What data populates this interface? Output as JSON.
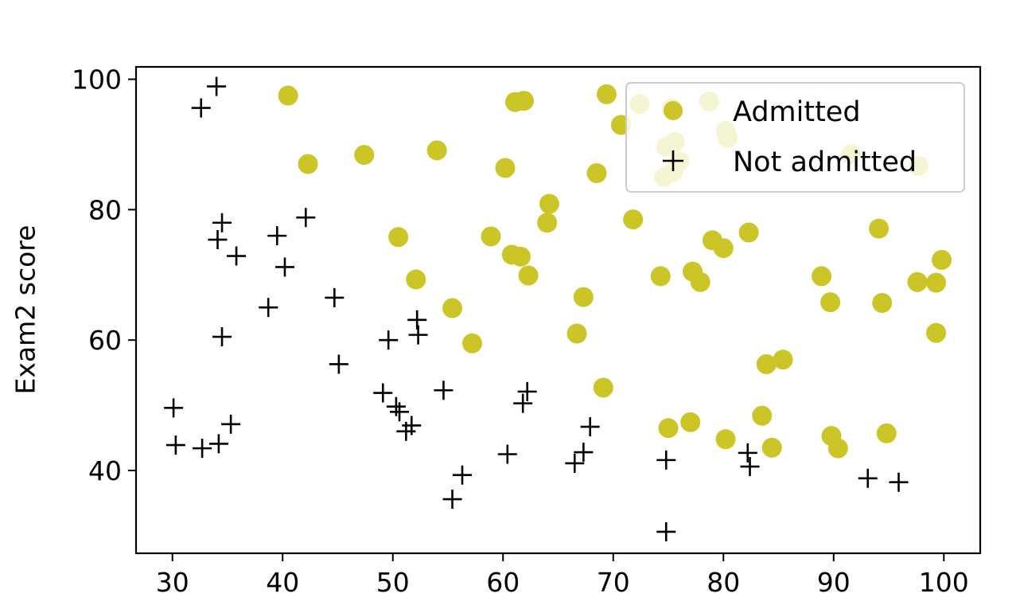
{
  "chart_data": {
    "type": "scatter",
    "title": "",
    "xlabel": "",
    "ylabel": "Exam2 score",
    "xlim": [
      26.7,
      103.3
    ],
    "ylim": [
      27.3,
      101.9
    ],
    "xticks": [
      30,
      40,
      50,
      60,
      70,
      80,
      90,
      100
    ],
    "yticks": [
      40,
      60,
      80,
      100
    ],
    "grid": false,
    "legend": {
      "position": "top-right",
      "entries": [
        "Admitted",
        "Not admitted"
      ]
    },
    "colors": {
      "admitted": "#cbc527",
      "not_admitted": "#000000"
    },
    "series": [
      {
        "name": "Admitted",
        "marker": "circle",
        "points": [
          [
            40.5,
            97.5
          ],
          [
            42.3,
            87.0
          ],
          [
            47.4,
            88.4
          ],
          [
            54.0,
            89.1
          ],
          [
            60.2,
            86.4
          ],
          [
            61.1,
            96.5
          ],
          [
            61.9,
            96.7
          ],
          [
            69.4,
            97.7
          ],
          [
            70.7,
            93.0
          ],
          [
            72.4,
            96.2
          ],
          [
            75.3,
            95.5
          ],
          [
            78.7,
            96.6
          ],
          [
            80.2,
            92.1
          ],
          [
            80.4,
            91.0
          ],
          [
            91.6,
            88.5
          ],
          [
            97.7,
            86.7
          ],
          [
            74.8,
            89.6
          ],
          [
            75.6,
            90.4
          ],
          [
            74.6,
            85.0
          ],
          [
            75.4,
            85.8
          ],
          [
            76.0,
            87.4
          ],
          [
            68.5,
            85.6
          ],
          [
            64.2,
            80.9
          ],
          [
            64.0,
            78.0
          ],
          [
            71.8,
            78.5
          ],
          [
            50.5,
            75.8
          ],
          [
            52.1,
            69.3
          ],
          [
            58.9,
            75.9
          ],
          [
            60.8,
            73.1
          ],
          [
            61.6,
            72.8
          ],
          [
            62.3,
            69.9
          ],
          [
            55.4,
            64.9
          ],
          [
            57.2,
            59.5
          ],
          [
            67.3,
            66.6
          ],
          [
            66.7,
            61.0
          ],
          [
            74.3,
            69.8
          ],
          [
            77.2,
            70.5
          ],
          [
            77.9,
            68.9
          ],
          [
            79.0,
            75.3
          ],
          [
            80.0,
            74.1
          ],
          [
            82.3,
            76.5
          ],
          [
            88.9,
            69.8
          ],
          [
            89.7,
            65.8
          ],
          [
            94.1,
            77.1
          ],
          [
            94.4,
            65.7
          ],
          [
            97.6,
            68.9
          ],
          [
            99.3,
            68.8
          ],
          [
            99.8,
            72.3
          ],
          [
            99.3,
            61.1
          ],
          [
            83.9,
            56.3
          ],
          [
            85.4,
            57.0
          ],
          [
            69.1,
            52.7
          ],
          [
            75.0,
            46.5
          ],
          [
            77.0,
            47.4
          ],
          [
            80.2,
            44.8
          ],
          [
            83.5,
            48.4
          ],
          [
            84.4,
            43.5
          ],
          [
            89.8,
            45.3
          ],
          [
            90.4,
            43.4
          ],
          [
            94.8,
            45.7
          ]
        ]
      },
      {
        "name": "Not admitted",
        "marker": "plus",
        "points": [
          [
            32.6,
            95.6
          ],
          [
            34.0,
            98.9
          ],
          [
            34.5,
            78.0
          ],
          [
            34.1,
            75.4
          ],
          [
            35.8,
            72.9
          ],
          [
            39.5,
            76.0
          ],
          [
            42.1,
            78.8
          ],
          [
            40.2,
            71.2
          ],
          [
            38.7,
            65.0
          ],
          [
            44.7,
            66.5
          ],
          [
            34.5,
            60.5
          ],
          [
            45.1,
            56.3
          ],
          [
            49.6,
            60.0
          ],
          [
            52.2,
            63.1
          ],
          [
            52.3,
            60.8
          ],
          [
            30.1,
            49.6
          ],
          [
            30.3,
            43.9
          ],
          [
            32.7,
            43.4
          ],
          [
            34.2,
            44.1
          ],
          [
            35.3,
            47.1
          ],
          [
            49.1,
            51.9
          ],
          [
            50.3,
            49.8
          ],
          [
            50.6,
            49.0
          ],
          [
            51.2,
            46.0
          ],
          [
            51.7,
            46.9
          ],
          [
            54.6,
            52.3
          ],
          [
            56.3,
            39.3
          ],
          [
            55.4,
            35.6
          ],
          [
            60.4,
            42.5
          ],
          [
            61.8,
            50.3
          ],
          [
            62.2,
            52.1
          ],
          [
            66.5,
            41.1
          ],
          [
            67.3,
            42.8
          ],
          [
            67.9,
            46.7
          ],
          [
            74.8,
            41.6
          ],
          [
            74.8,
            30.6
          ],
          [
            82.2,
            42.7
          ],
          [
            82.4,
            40.6
          ],
          [
            93.1,
            38.8
          ],
          [
            95.9,
            38.2
          ]
        ]
      }
    ]
  }
}
